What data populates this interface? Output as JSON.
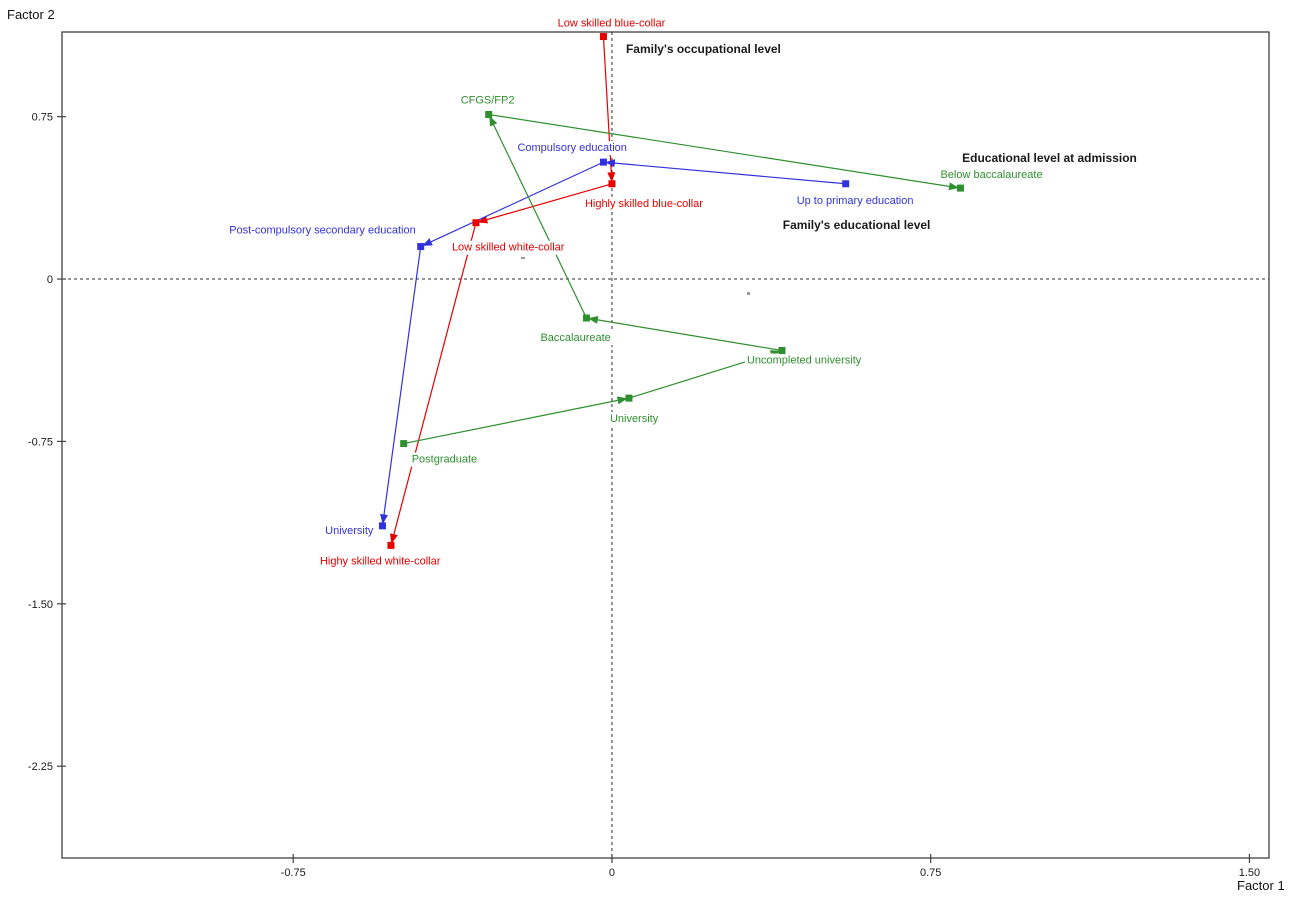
{
  "chart_data": {
    "type": "scatter",
    "title": "",
    "xlabel": "Factor 1",
    "ylabel": "Factor 2",
    "x_range": [
      -1.294,
      1.546
    ],
    "y_range": [
      -2.674,
      1.141
    ],
    "x_ticks": {
      "values": [
        -0.75,
        0,
        0.75,
        1.5
      ],
      "labels": [
        "-0.75",
        "0",
        "0.75",
        "1.50"
      ]
    },
    "y_ticks": {
      "values": [
        0.75,
        0,
        -0.75,
        -1.5,
        -2.25
      ],
      "labels": [
        "0.75",
        "0",
        "-0.75",
        "-1.50",
        "-2.25"
      ]
    },
    "grid": false,
    "legend_position": "none",
    "reference_lines": {
      "vertical_x": 0,
      "horizontal_y": 0,
      "style": "dashed"
    },
    "axis_color": "#404040",
    "tick_text_color": "#1a1a1a",
    "series": [
      {
        "name": "Family's occupational level",
        "color": "#e60000",
        "style": "trajectory with arrowheads from first point to last",
        "points": [
          {
            "label": "Low skilled blue-collar",
            "x": -0.02,
            "y": 1.12,
            "anchor": "middle",
            "dx": 8,
            "dy": -10
          },
          {
            "label": "Highly skilled blue-collar",
            "x": 0.0,
            "y": 0.44,
            "anchor": "start",
            "dx": -27,
            "dy": 23
          },
          {
            "label": "Low skilled white-collar",
            "x": -0.32,
            "y": 0.26,
            "anchor": "start",
            "dx": -24,
            "dy": 28
          },
          {
            "label": "Highy skilled white-collar",
            "x": -0.52,
            "y": -1.23,
            "anchor": "start",
            "dx": -71,
            "dy": 19
          }
        ]
      },
      {
        "name": "Family's educational level",
        "color": "#3232dc",
        "style": "trajectory with arrowheads from first point to last",
        "points": [
          {
            "label": "Up to primary education",
            "x": 0.55,
            "y": 0.44,
            "anchor": "start",
            "dx": -49,
            "dy": 20
          },
          {
            "label": "Compulsory education",
            "x": -0.02,
            "y": 0.54,
            "anchor": "start",
            "dx": -86,
            "dy": -11
          },
          {
            "label": "Post-compulsory secondary education",
            "x": -0.45,
            "y": 0.15,
            "anchor": "end",
            "dx": -5,
            "dy": -13
          },
          {
            "label": "University",
            "x": -0.54,
            "y": -1.14,
            "anchor": "end",
            "dx": -9,
            "dy": 8
          }
        ]
      },
      {
        "name": "Educational level at admission",
        "color": "#2f8f2f",
        "style": "trajectory with arrowheads from first point to last",
        "points": [
          {
            "label": "Postgraduate",
            "x": -0.49,
            "y": -0.76,
            "anchor": "start",
            "dx": 8,
            "dy": 19
          },
          {
            "label": "University",
            "x": 0.04,
            "y": -0.55,
            "anchor": "start",
            "dx": -19,
            "dy": 24
          },
          {
            "label": "Uncompleted university",
            "x": 0.4,
            "y": -0.33,
            "anchor": "start",
            "dx": -35,
            "dy": 13
          },
          {
            "label": "Baccalaureate",
            "x": -0.06,
            "y": -0.18,
            "anchor": "start",
            "dx": -46,
            "dy": 23
          },
          {
            "label": "CFGS/FP2",
            "x": -0.29,
            "y": 0.76,
            "anchor": "start",
            "dx": -28,
            "dy": -11
          },
          {
            "label": "Below baccalaureate",
            "x": 0.82,
            "y": 0.42,
            "anchor": "start",
            "dx": -20,
            "dy": -10
          }
        ]
      }
    ],
    "annotations": [
      {
        "text": "Family's occupational level",
        "x": 0.033,
        "y": 1.044,
        "bold": true,
        "color": "#1a1a1a"
      },
      {
        "text": "Educational level at admission",
        "x": 0.824,
        "y": 0.54,
        "bold": true,
        "color": "#1a1a1a"
      },
      {
        "text": "Family's educational level",
        "x": 0.402,
        "y": 0.231,
        "bold": true,
        "color": "#1a1a1a"
      }
    ]
  }
}
